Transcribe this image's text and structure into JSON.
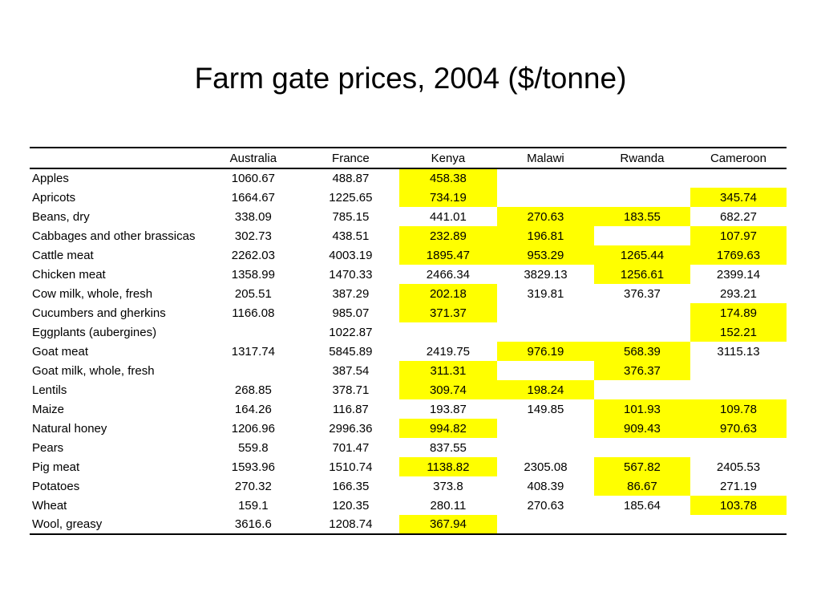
{
  "title": "Farm gate prices, 2004 ($/tonne)",
  "highlight_color": "#ffff00",
  "table": {
    "columns": [
      "",
      "Australia",
      "France",
      "Kenya",
      "Malawi",
      "Rwanda",
      "Cameroon"
    ],
    "rows": [
      {
        "product": "Apples",
        "values": [
          "1060.67",
          "488.87",
          "458.38",
          "",
          "",
          ""
        ],
        "highlight": [
          false,
          false,
          true,
          false,
          false,
          false
        ]
      },
      {
        "product": "Apricots",
        "values": [
          "1664.67",
          "1225.65",
          "734.19",
          "",
          "",
          "345.74"
        ],
        "highlight": [
          false,
          false,
          true,
          false,
          false,
          true
        ]
      },
      {
        "product": "Beans, dry",
        "values": [
          "338.09",
          "785.15",
          "441.01",
          "270.63",
          "183.55",
          "682.27"
        ],
        "highlight": [
          false,
          false,
          false,
          true,
          true,
          false
        ]
      },
      {
        "product": "Cabbages and other brassicas",
        "values": [
          "302.73",
          "438.51",
          "232.89",
          "196.81",
          "",
          "107.97"
        ],
        "highlight": [
          false,
          false,
          true,
          true,
          false,
          true
        ]
      },
      {
        "product": "Cattle meat",
        "values": [
          "2262.03",
          "4003.19",
          "1895.47",
          "953.29",
          "1265.44",
          "1769.63"
        ],
        "highlight": [
          false,
          false,
          true,
          true,
          true,
          true
        ]
      },
      {
        "product": "Chicken meat",
        "values": [
          "1358.99",
          "1470.33",
          "2466.34",
          "3829.13",
          "1256.61",
          "2399.14"
        ],
        "highlight": [
          false,
          false,
          false,
          false,
          true,
          false
        ]
      },
      {
        "product": "Cow milk, whole, fresh",
        "values": [
          "205.51",
          "387.29",
          "202.18",
          "319.81",
          "376.37",
          "293.21"
        ],
        "highlight": [
          false,
          false,
          true,
          false,
          false,
          false
        ]
      },
      {
        "product": "Cucumbers and gherkins",
        "values": [
          "1166.08",
          "985.07",
          "371.37",
          "",
          "",
          "174.89"
        ],
        "highlight": [
          false,
          false,
          true,
          false,
          false,
          true
        ]
      },
      {
        "product": "Eggplants (aubergines)",
        "values": [
          "",
          "1022.87",
          "",
          "",
          "",
          "152.21"
        ],
        "highlight": [
          false,
          false,
          false,
          false,
          false,
          true
        ]
      },
      {
        "product": "Goat meat",
        "values": [
          "1317.74",
          "5845.89",
          "2419.75",
          "976.19",
          "568.39",
          "3115.13"
        ],
        "highlight": [
          false,
          false,
          false,
          true,
          true,
          false
        ]
      },
      {
        "product": "Goat milk, whole, fresh",
        "values": [
          "",
          "387.54",
          "311.31",
          "",
          "376.37",
          ""
        ],
        "highlight": [
          false,
          false,
          true,
          false,
          true,
          false
        ]
      },
      {
        "product": "Lentils",
        "values": [
          "268.85",
          "378.71",
          "309.74",
          "198.24",
          "",
          ""
        ],
        "highlight": [
          false,
          false,
          true,
          true,
          false,
          false
        ]
      },
      {
        "product": "Maize",
        "values": [
          "164.26",
          "116.87",
          "193.87",
          "149.85",
          "101.93",
          "109.78"
        ],
        "highlight": [
          false,
          false,
          false,
          false,
          true,
          true
        ]
      },
      {
        "product": "Natural honey",
        "values": [
          "1206.96",
          "2996.36",
          "994.82",
          "",
          "909.43",
          "970.63"
        ],
        "highlight": [
          false,
          false,
          true,
          false,
          true,
          true
        ]
      },
      {
        "product": "Pears",
        "values": [
          "559.8",
          "701.47",
          "837.55",
          "",
          "",
          ""
        ],
        "highlight": [
          false,
          false,
          false,
          false,
          false,
          false
        ]
      },
      {
        "product": "Pig meat",
        "values": [
          "1593.96",
          "1510.74",
          "1138.82",
          "2305.08",
          "567.82",
          "2405.53"
        ],
        "highlight": [
          false,
          false,
          true,
          false,
          true,
          false
        ]
      },
      {
        "product": "Potatoes",
        "values": [
          "270.32",
          "166.35",
          "373.8",
          "408.39",
          "86.67",
          "271.19"
        ],
        "highlight": [
          false,
          false,
          false,
          false,
          true,
          false
        ]
      },
      {
        "product": "Wheat",
        "values": [
          "159.1",
          "120.35",
          "280.11",
          "270.63",
          "185.64",
          "103.78"
        ],
        "highlight": [
          false,
          false,
          false,
          false,
          false,
          true
        ]
      },
      {
        "product": "Wool, greasy",
        "values": [
          "3616.6",
          "1208.74",
          "367.94",
          "",
          "",
          ""
        ],
        "highlight": [
          false,
          false,
          true,
          false,
          false,
          false
        ]
      }
    ]
  }
}
